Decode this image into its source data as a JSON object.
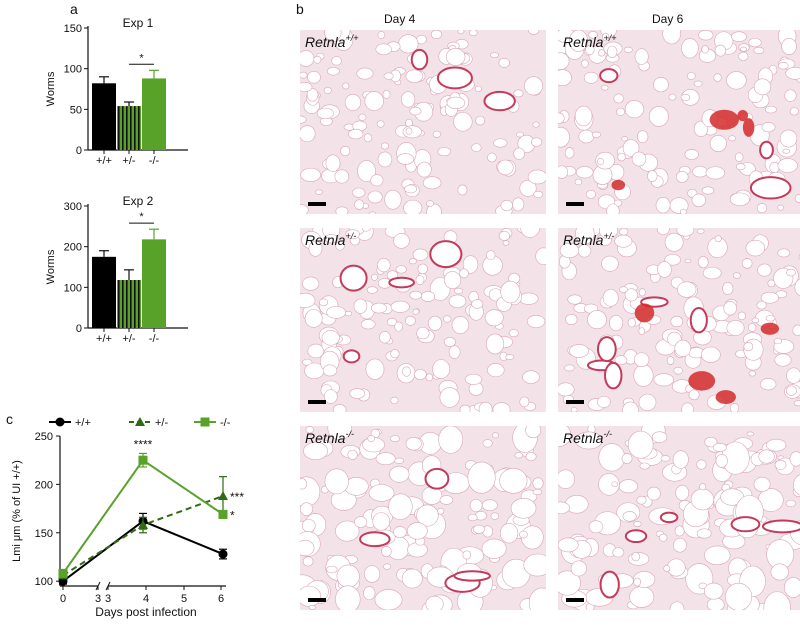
{
  "panel_labels": {
    "a": "a",
    "b": "b",
    "c": "c"
  },
  "colors": {
    "wt": "#000000",
    "het": "#2f6b12",
    "ko": "#59a22a",
    "tissue_bg": "#f3e3e8",
    "vessel": "#c43a5a",
    "blood": "#d42a2a",
    "scalebar": "#000000"
  },
  "chart_data": [
    {
      "type": "bar",
      "title": "Exp 1",
      "ylabel": "Worms",
      "categories": [
        "+/+",
        "+/-",
        "-/-"
      ],
      "values": [
        82,
        54,
        88
      ],
      "errors": [
        8,
        5,
        10
      ],
      "ylim": [
        0,
        150
      ],
      "yticks": [
        "0",
        "50",
        "100",
        "150"
      ],
      "significance": [
        {
          "from": 1,
          "to": 2,
          "label": "*"
        }
      ]
    },
    {
      "type": "bar",
      "title": "Exp 2",
      "ylabel": "Worms",
      "categories": [
        "+/+",
        "+/-",
        "-/-"
      ],
      "values": [
        175,
        118,
        218
      ],
      "errors": [
        15,
        25,
        25
      ],
      "ylim": [
        0,
        300
      ],
      "yticks": [
        "0",
        "100",
        "200",
        "300"
      ],
      "significance": [
        {
          "from": 1,
          "to": 2,
          "label": "*"
        }
      ]
    },
    {
      "type": "line",
      "xlabel": "Days post infection",
      "ylabel": "Lmi μm (% of UI +/+)",
      "ylim": [
        95,
        250
      ],
      "xticks": [
        "0",
        "3",
        "3",
        "4",
        "5",
        "6"
      ],
      "yticks": [
        "100",
        "150",
        "200",
        "250"
      ],
      "x": [
        0,
        4,
        6
      ],
      "series": [
        {
          "name": "+/+",
          "marker": "circle",
          "dash": "solid",
          "values": [
            100,
            162,
            128
          ],
          "errors": [
            3,
            8,
            5
          ],
          "end_label": ""
        },
        {
          "name": "+/-",
          "marker": "triangle",
          "dash": "dashed",
          "values": [
            106,
            158,
            188
          ],
          "errors": [
            3,
            8,
            20
          ],
          "end_label": "***"
        },
        {
          "name": "-/-",
          "marker": "square",
          "dash": "solid",
          "values": [
            108,
            225,
            169
          ],
          "errors": [
            4,
            7,
            4
          ],
          "end_label": "*"
        }
      ],
      "annotations": [
        {
          "x": 4,
          "label": "****"
        }
      ]
    }
  ],
  "micrographs": {
    "columns": [
      "Day 4",
      "Day 6"
    ],
    "rows": [
      {
        "label": "Retnla",
        "superscript": "+/+"
      },
      {
        "label": "Retnla",
        "superscript": "+/-"
      },
      {
        "label": "Retnla",
        "superscript": "-/-"
      }
    ]
  }
}
